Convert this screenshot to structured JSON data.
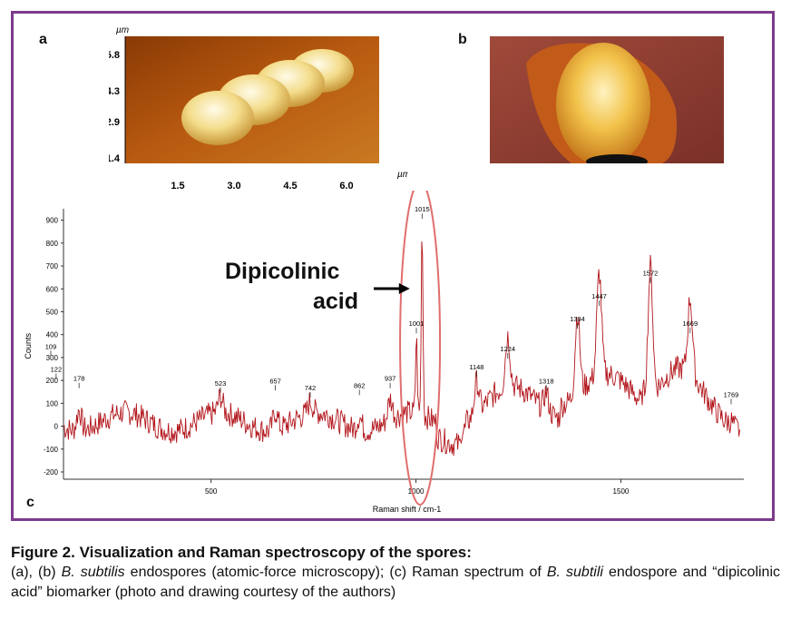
{
  "panels": {
    "a": "a",
    "b": "b",
    "c": "c"
  },
  "afm_a": {
    "unit_y": "µm",
    "unit_x": "µm",
    "y_ticks": [
      "5.8",
      "4.3",
      "2.9",
      "1.4"
    ],
    "x_ticks": [
      "1.5",
      "3.0",
      "4.5",
      "6.0"
    ]
  },
  "annotation": {
    "line1": "Dipicolinic",
    "line2": "acid"
  },
  "caption": {
    "title": "Figure 2. Visualization and Raman spectroscopy of the spores:",
    "t1": "(a), (b) ",
    "t2": "B. subtilis",
    "t3": " endospores (atomic-force microscopy); (c) Raman spectrum of ",
    "t4": "B. subtili",
    "t5": " endospore and “dipicolinic acid” biomarker (photo and drawing courtesy of the authors)"
  },
  "colors": {
    "frame": "#7b3a8c",
    "spectrum": "#b2151b",
    "ellipse": "#e06e6e"
  },
  "chart_data": {
    "type": "line",
    "xlabel": "Raman shift / cm-1",
    "ylabel": "Counts",
    "xlim": [
      140,
      1800
    ],
    "ylim": [
      -200,
      950
    ],
    "x_ticks": [
      500,
      1000,
      1500
    ],
    "y_ticks": [
      -200,
      -100,
      0,
      100,
      200,
      300,
      400,
      500,
      600,
      700,
      800,
      900
    ],
    "peaks": [
      {
        "x": 109,
        "y": 290,
        "label": "109"
      },
      {
        "x": 122,
        "y": 190,
        "label": "122"
      },
      {
        "x": 178,
        "y": 150,
        "label": "178"
      },
      {
        "x": 523,
        "y": 130,
        "label": "523"
      },
      {
        "x": 657,
        "y": 140,
        "label": "657"
      },
      {
        "x": 742,
        "y": 110,
        "label": "742"
      },
      {
        "x": 862,
        "y": 120,
        "label": "862"
      },
      {
        "x": 937,
        "y": 150,
        "label": "937"
      },
      {
        "x": 1001,
        "y": 390,
        "label": "1001"
      },
      {
        "x": 1015,
        "y": 890,
        "label": "1015"
      },
      {
        "x": 1148,
        "y": 200,
        "label": "1148"
      },
      {
        "x": 1224,
        "y": 280,
        "label": "1224"
      },
      {
        "x": 1318,
        "y": 140,
        "label": "1318"
      },
      {
        "x": 1394,
        "y": 410,
        "label": "1394"
      },
      {
        "x": 1447,
        "y": 510,
        "label": "1447"
      },
      {
        "x": 1572,
        "y": 610,
        "label": "1572"
      },
      {
        "x": 1669,
        "y": 390,
        "label": "1669"
      },
      {
        "x": 1769,
        "y": 80,
        "label": "1769"
      }
    ]
  }
}
